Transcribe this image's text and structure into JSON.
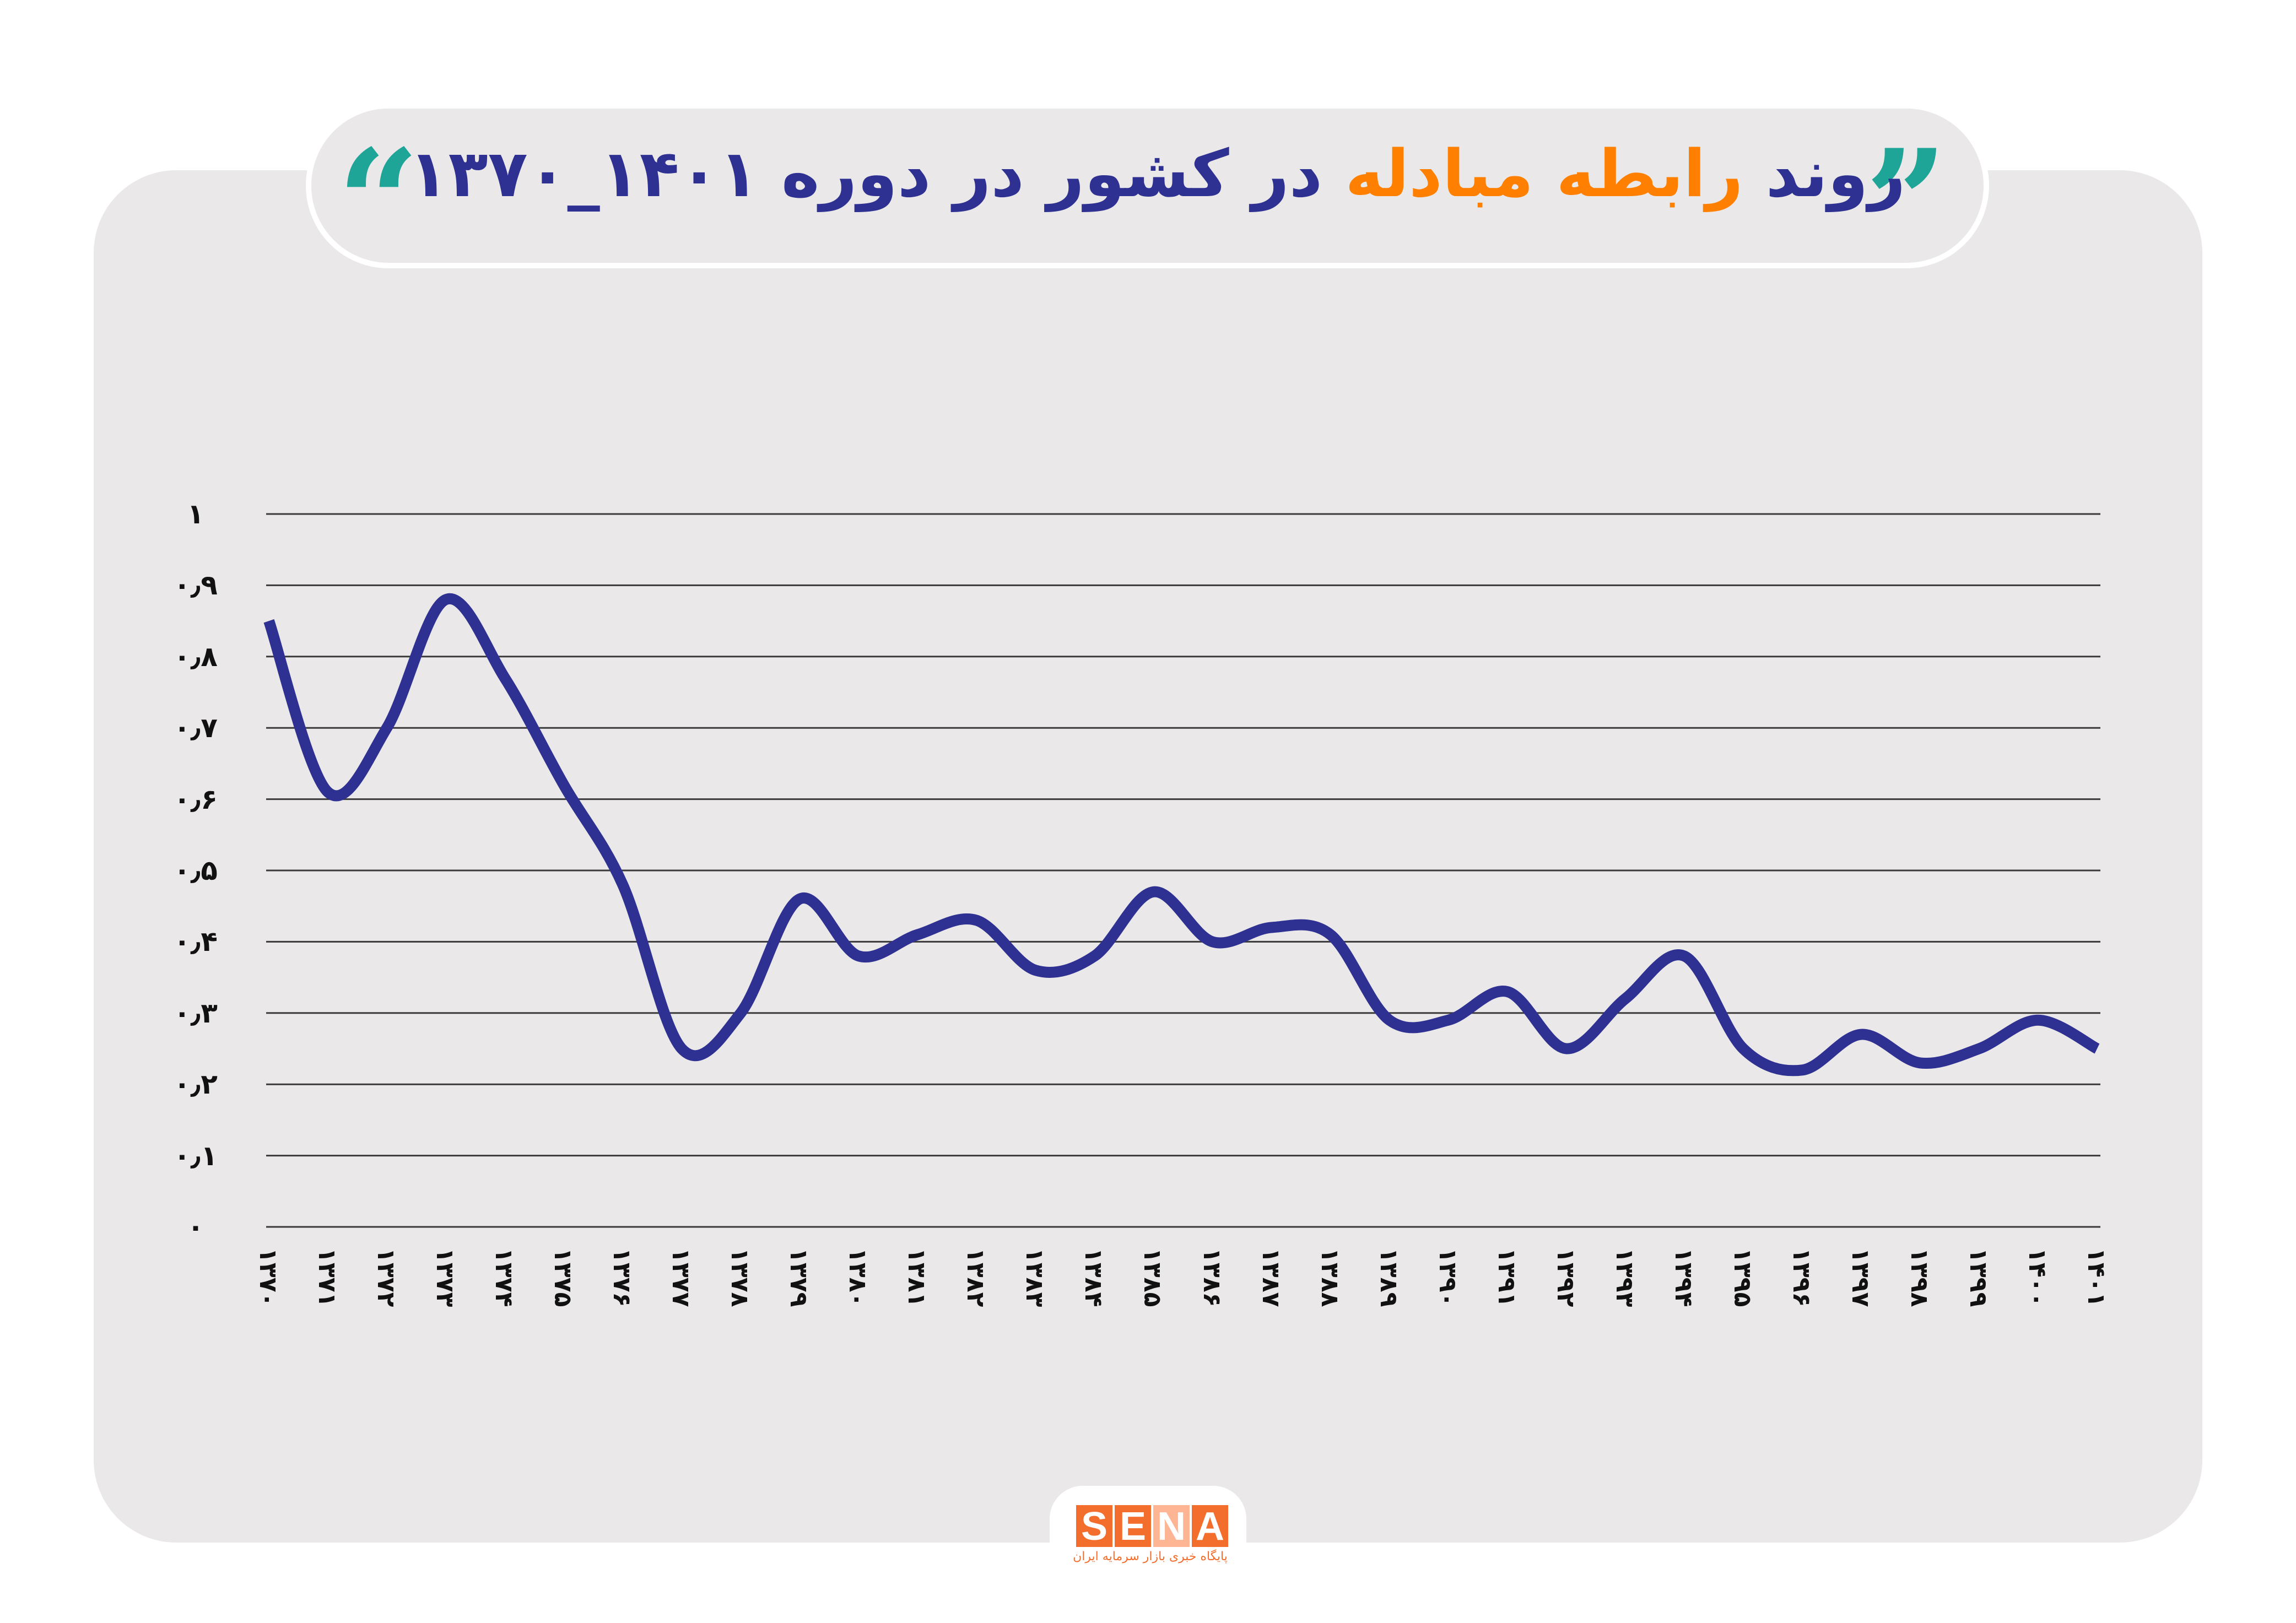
{
  "header": {
    "title_prefix": "روند",
    "title_accent": "رابطه مبادله",
    "title_suffix": "در کشور در دوره ۱۴۰۱_۱۳۷۰",
    "quote_open": "“",
    "quote_close": "”",
    "quote_icon": "quotation-marks-icon"
  },
  "colors": {
    "line": "#2e3192",
    "title": "#2e3192",
    "accent": "#ff8000",
    "quote": "#1fa597",
    "panel": "#eae8e9",
    "grid": "#3a3a3a",
    "logo": "#f36e2c"
  },
  "logo": {
    "letters": [
      "S",
      "E",
      "N",
      "A"
    ],
    "subtitle": "پایگاه خبری بازار سرمایه ایران"
  },
  "chart_data": {
    "type": "line",
    "title": "روند رابطه مبادله در کشور در دوره ۱۴۰۱_۱۳۷۰",
    "xlabel": "",
    "ylabel": "",
    "ylim": [
      0,
      1
    ],
    "grid": true,
    "legend": "none",
    "y_ticks": [
      {
        "value": 0,
        "label": "۰"
      },
      {
        "value": 0.1,
        "label": "۰٫۱"
      },
      {
        "value": 0.2,
        "label": "۰٫۲"
      },
      {
        "value": 0.3,
        "label": "۰٫۳"
      },
      {
        "value": 0.4,
        "label": "۰٫۴"
      },
      {
        "value": 0.5,
        "label": "۰٫۵"
      },
      {
        "value": 0.6,
        "label": "۰٫۶"
      },
      {
        "value": 0.7,
        "label": "۰٫۷"
      },
      {
        "value": 0.8,
        "label": "۰٫۸"
      },
      {
        "value": 0.9,
        "label": "۰٫۹"
      },
      {
        "value": 1,
        "label": "۱"
      }
    ],
    "categories": [
      "۱۳۷۰",
      "۱۳۷۱",
      "۱۳۷۲",
      "۱۳۷۳",
      "۱۳۷۴",
      "۱۳۷۵",
      "۱۳۷۶",
      "۱۳۷۷",
      "۱۳۷۸",
      "۱۳۷۹",
      "۱۳۸۰",
      "۱۳۸۱",
      "۱۳۸۲",
      "۱۳۸۳",
      "۱۳۸۴",
      "۱۳۸۵",
      "۱۳۸۶",
      "۱۳۸۷",
      "۱۳۸۸",
      "۱۳۸۹",
      "۱۳۹۰",
      "۱۳۹۱",
      "۱۳۹۲",
      "۱۳۹۳",
      "۱۳۹۴",
      "۱۳۹۵",
      "۱۳۹۶",
      "۱۳۹۷",
      "۱۳۹۸",
      "۱۳۹۹",
      "۱۴۰۰",
      "۱۴۰۱"
    ],
    "series": [
      {
        "name": "رابطه مبادله",
        "values": [
          0.85,
          0.61,
          0.7,
          0.88,
          0.77,
          0.62,
          0.48,
          0.25,
          0.3,
          0.46,
          0.38,
          0.41,
          0.43,
          0.36,
          0.38,
          0.47,
          0.4,
          0.42,
          0.41,
          0.29,
          0.29,
          0.33,
          0.25,
          0.32,
          0.38,
          0.25,
          0.22,
          0.27,
          0.23,
          0.25,
          0.29,
          0.25
        ]
      }
    ]
  }
}
